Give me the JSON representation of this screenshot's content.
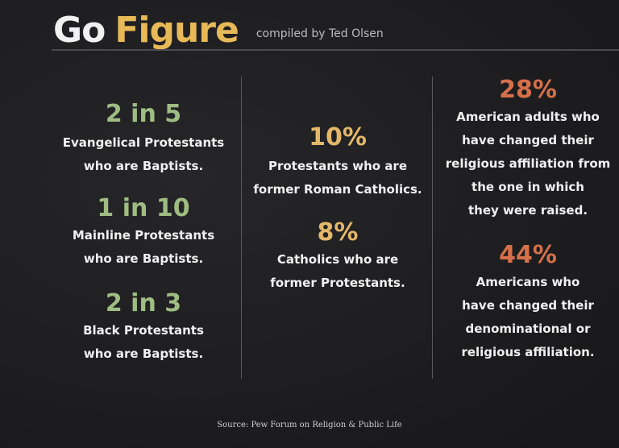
{
  "header": {
    "title_part1": "Go",
    "title_part2": "Figure",
    "byline": "compiled by Ted Olsen"
  },
  "left_column": [
    {
      "stat": "2 in 5",
      "line1": "Evangelical Protestants",
      "line2": "who are Baptists."
    },
    {
      "stat": "1 in 10",
      "line1": "Mainline Protestants",
      "line2": "who are Baptists."
    },
    {
      "stat": "2 in 3",
      "line1": "Black Protestants",
      "line2": "who are Baptists."
    }
  ],
  "middle_column": [
    {
      "stat": "10%",
      "line1": "Protestants who are",
      "line2": "former Roman Catholics."
    },
    {
      "stat": "8%",
      "line1": "Catholics who are",
      "line2": "former Protestants."
    }
  ],
  "right_column": [
    {
      "stat": "28%",
      "lines": [
        "American adults who",
        "have changed their",
        "religious affiliation from",
        "the one in which",
        "they were raised."
      ]
    },
    {
      "stat": "44%",
      "lines": [
        "Americans who",
        "have changed their",
        "denominational or",
        "religious affiliation."
      ]
    }
  ],
  "source": "Source: Pew Forum on Religion & Public Life",
  "colors": {
    "background": "#1e1e20",
    "green_stat": "#9fbd83",
    "gold_stat": "#e4b86a",
    "rust_stat": "#d6704a",
    "title_gold": "#e7b957"
  }
}
